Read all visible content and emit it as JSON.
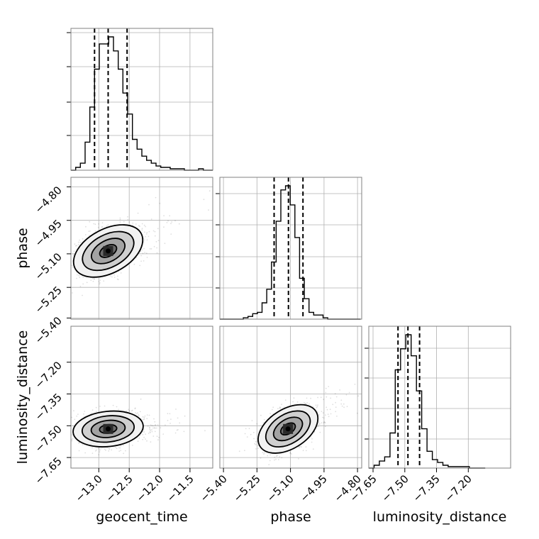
{
  "chart_data": {
    "type": "corner",
    "parameters": [
      "geocent_time",
      "phase",
      "luminosity_distance"
    ],
    "axis_labels": {
      "geocent_time": "geocent_time",
      "phase": "phase",
      "luminosity_distance": "luminosity_distance"
    },
    "ranges": {
      "geocent_time": [
        -13.35,
        -10.95
      ],
      "phase": [
        -5.405,
        -4.77
      ],
      "luminosity_distance": [
        -7.67,
        -7.0
      ]
    },
    "ticks": {
      "geocent_time": [
        -13.0,
        -12.5,
        -12.0,
        -11.5
      ],
      "phase": [
        -5.4,
        -5.25,
        -5.1,
        -4.95,
        -4.8
      ],
      "luminosity_distance": [
        -7.65,
        -7.5,
        -7.35,
        -7.2
      ]
    },
    "tick_labels": {
      "geocent_time": [
        "−13.0",
        "−12.5",
        "−12.0",
        "−11.5"
      ],
      "phase": [
        "−5.40",
        "−5.25",
        "−5.10",
        "−4.95",
        "−4.80"
      ],
      "luminosity_distance": [
        "−7.65",
        "−7.50",
        "−7.35",
        "−7.20"
      ]
    },
    "quantiles": {
      "geocent_time": [
        -12.95,
        -12.72,
        -12.4
      ],
      "phase": [
        -5.162,
        -5.098,
        -5.033
      ],
      "luminosity_distance": [
        -7.532,
        -7.485,
        -7.43
      ]
    },
    "medians_2d": {
      "geocent_time": -12.72,
      "phase": -5.1,
      "luminosity_distance": -7.485
    },
    "histograms": {
      "geocent_time": {
        "edges": [
          -13.35,
          -13.27,
          -13.19,
          -13.11,
          -13.03,
          -12.95,
          -12.87,
          -12.79,
          -12.71,
          -12.63,
          -12.55,
          -12.47,
          -12.39,
          -12.31,
          -12.23,
          -12.15,
          -12.07,
          -11.99,
          -11.91,
          -11.83,
          -11.75,
          -11.67,
          -11.59,
          -11.51,
          -11.43,
          -11.35,
          -11.27,
          -11.19,
          -11.11,
          -11.03,
          -10.95
        ],
        "counts": [
          0,
          2,
          5,
          20,
          45,
          72,
          90,
          90,
          95,
          85,
          72,
          55,
          40,
          22,
          15,
          10,
          7,
          5,
          3,
          2,
          2,
          1,
          1,
          1,
          0,
          0,
          0,
          1,
          0,
          0
        ]
      },
      "phase": {
        "edges": [
          -5.405,
          -5.384,
          -5.363,
          -5.342,
          -5.321,
          -5.3,
          -5.279,
          -5.258,
          -5.237,
          -5.216,
          -5.195,
          -5.174,
          -5.153,
          -5.132,
          -5.111,
          -5.09,
          -5.069,
          -5.048,
          -5.027,
          -5.006,
          -4.985,
          -4.964,
          -4.943,
          -4.922,
          -4.901,
          -4.88,
          -4.859,
          -4.838,
          -4.817,
          -4.796,
          -4.775
        ],
        "counts": [
          0,
          0,
          0,
          0,
          0,
          1,
          2,
          4,
          5,
          12,
          22,
          42,
          72,
          95,
          98,
          84,
          60,
          30,
          15,
          5,
          3,
          3,
          1,
          0,
          0,
          0,
          0,
          0,
          0,
          0
        ]
      },
      "luminosity_distance": {
        "edges": [
          -7.67,
          -7.645,
          -7.62,
          -7.595,
          -7.57,
          -7.545,
          -7.52,
          -7.495,
          -7.47,
          -7.445,
          -7.42,
          -7.395,
          -7.37,
          -7.345,
          -7.32,
          -7.295,
          -7.27,
          -7.245,
          -7.22,
          -7.195,
          -7.17,
          -7.145,
          -7.12
        ],
        "counts": [
          0,
          2,
          5,
          8,
          25,
          70,
          85,
          95,
          80,
          55,
          28,
          12,
          6,
          4,
          2,
          1,
          1,
          1,
          1,
          0,
          0,
          0
        ]
      }
    },
    "grid": true
  }
}
